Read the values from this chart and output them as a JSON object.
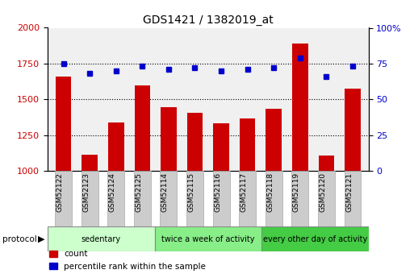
{
  "title": "GDS1421 / 1382019_at",
  "categories": [
    "GSM52122",
    "GSM52123",
    "GSM52124",
    "GSM52125",
    "GSM52114",
    "GSM52115",
    "GSM52116",
    "GSM52117",
    "GSM52118",
    "GSM52119",
    "GSM52120",
    "GSM52121"
  ],
  "counts": [
    1660,
    1115,
    1340,
    1595,
    1445,
    1405,
    1335,
    1365,
    1435,
    1890,
    1110,
    1575
  ],
  "percentiles": [
    75,
    68,
    70,
    73,
    71,
    72,
    70,
    71,
    72,
    79,
    66,
    73
  ],
  "ylim_left": [
    1000,
    2000
  ],
  "ylim_right": [
    0,
    100
  ],
  "yticks_left": [
    1000,
    1250,
    1500,
    1750,
    2000
  ],
  "yticks_right": [
    0,
    25,
    50,
    75,
    100
  ],
  "bar_color": "#cc0000",
  "dot_color": "#0000cc",
  "plot_bg": "#f0f0f0",
  "groups": [
    {
      "label": "sedentary",
      "start": 0,
      "end": 4,
      "color": "#ccffcc"
    },
    {
      "label": "twice a week of activity",
      "start": 4,
      "end": 8,
      "color": "#88ee88"
    },
    {
      "label": "every other day of activity",
      "start": 8,
      "end": 12,
      "color": "#44cc44"
    }
  ],
  "group_label_prefix": "protocol",
  "legend_count_label": "count",
  "legend_percentile_label": "percentile rank within the sample",
  "background_color": "#ffffff",
  "xtick_bg": "#cccccc"
}
